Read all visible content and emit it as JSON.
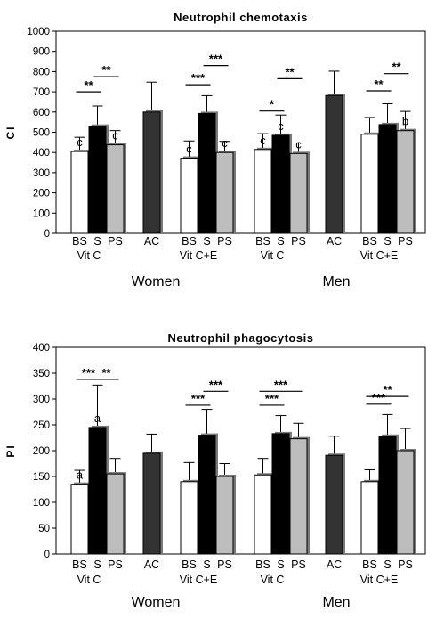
{
  "chart_data": [
    {
      "type": "bar",
      "title": "Neutrophil chemotaxis",
      "ylabel": "CI",
      "ylim": [
        0,
        1000
      ],
      "yticks": [
        "0",
        "100",
        "200",
        "300",
        "400",
        "500",
        "600",
        "700",
        "800",
        "900",
        "1000"
      ],
      "categories": [
        "BS",
        "S",
        "PS",
        "AC",
        "BS",
        "S",
        "PS",
        "BS",
        "S",
        "PS",
        "AC",
        "BS",
        "S",
        "PS"
      ],
      "bar_kinds": [
        "BS",
        "S",
        "PS",
        "AC",
        "BS",
        "S",
        "PS",
        "BS",
        "S",
        "PS",
        "AC",
        "BS",
        "S",
        "PS"
      ],
      "values": [
        405,
        530,
        438,
        600,
        372,
        593,
        400,
        415,
        485,
        395,
        682,
        490,
        538,
        508
      ],
      "errors": [
        70,
        100,
        70,
        148,
        85,
        88,
        55,
        78,
        100,
        52,
        120,
        83,
        103,
        95
      ],
      "letters": [
        "c",
        "",
        "c",
        "",
        "c",
        "",
        "c",
        "c",
        "c",
        "c",
        "",
        "",
        "",
        "b"
      ],
      "subgroups": [
        "Vit C",
        "Vit C+E",
        "Vit C",
        "Vit C+E"
      ],
      "groups": [
        "Women",
        "Men"
      ],
      "annotations": [
        {
          "text": "**",
          "from": 0,
          "to": 1,
          "y": 700
        },
        {
          "text": "**",
          "from": 1,
          "to": 2,
          "y": 775
        },
        {
          "text": "***",
          "from": 4,
          "to": 5,
          "y": 735
        },
        {
          "text": "***",
          "from": 5,
          "to": 6,
          "y": 830
        },
        {
          "text": "*",
          "from": 7,
          "to": 8,
          "y": 605
        },
        {
          "text": "**",
          "from": 8,
          "to": 9,
          "y": 765
        },
        {
          "text": "**",
          "from": 11,
          "to": 12,
          "y": 705
        },
        {
          "text": "**",
          "from": 12,
          "to": 13,
          "y": 790
        }
      ]
    },
    {
      "type": "bar",
      "title": "Neutrophil phagocytosis",
      "ylabel": "PI",
      "ylim": [
        0,
        400
      ],
      "yticks": [
        "0",
        "50",
        "100",
        "150",
        "200",
        "250",
        "300",
        "350",
        "400"
      ],
      "categories": [
        "BS",
        "S",
        "PS",
        "AC",
        "BS",
        "S",
        "PS",
        "BS",
        "S",
        "PS",
        "AC",
        "BS",
        "S",
        "PS"
      ],
      "bar_kinds": [
        "BS",
        "S",
        "PS",
        "AC",
        "BS",
        "S",
        "PS",
        "BS",
        "S",
        "PS",
        "AC",
        "BS",
        "S",
        "PS"
      ],
      "values": [
        135,
        245,
        155,
        195,
        140,
        230,
        150,
        153,
        233,
        223,
        191,
        140,
        228,
        200
      ],
      "errors": [
        27,
        82,
        30,
        37,
        37,
        50,
        25,
        32,
        35,
        30,
        37,
        23,
        42,
        43
      ],
      "letters": [
        "a",
        "a",
        "",
        "",
        "",
        "",
        "",
        "",
        "",
        "",
        "",
        "",
        "",
        ""
      ],
      "subgroups": [
        "Vit C",
        "Vit C+E",
        "Vit C",
        "Vit C+E"
      ],
      "groups": [
        "Women",
        "Men"
      ],
      "annotations": [
        {
          "text": "***",
          "from": 0,
          "to": 1,
          "y": 338
        },
        {
          "text": "**",
          "from": 1,
          "to": 2,
          "y": 338
        },
        {
          "text": "***",
          "from": 4,
          "to": 5,
          "y": 288
        },
        {
          "text": "***",
          "from": 5,
          "to": 6,
          "y": 315
        },
        {
          "text": "***",
          "from": 7,
          "to": 8,
          "y": 288
        },
        {
          "text": "***",
          "from": 7,
          "to": 9,
          "y": 315
        },
        {
          "text": "***",
          "from": 11,
          "to": 12,
          "y": 290
        },
        {
          "text": "**",
          "from": 11,
          "to": 13,
          "y": 305
        }
      ]
    }
  ],
  "colors": {
    "BS": "#ffffff",
    "S": "#000000",
    "PS": "#bdbdbd",
    "AC": "#333333"
  }
}
